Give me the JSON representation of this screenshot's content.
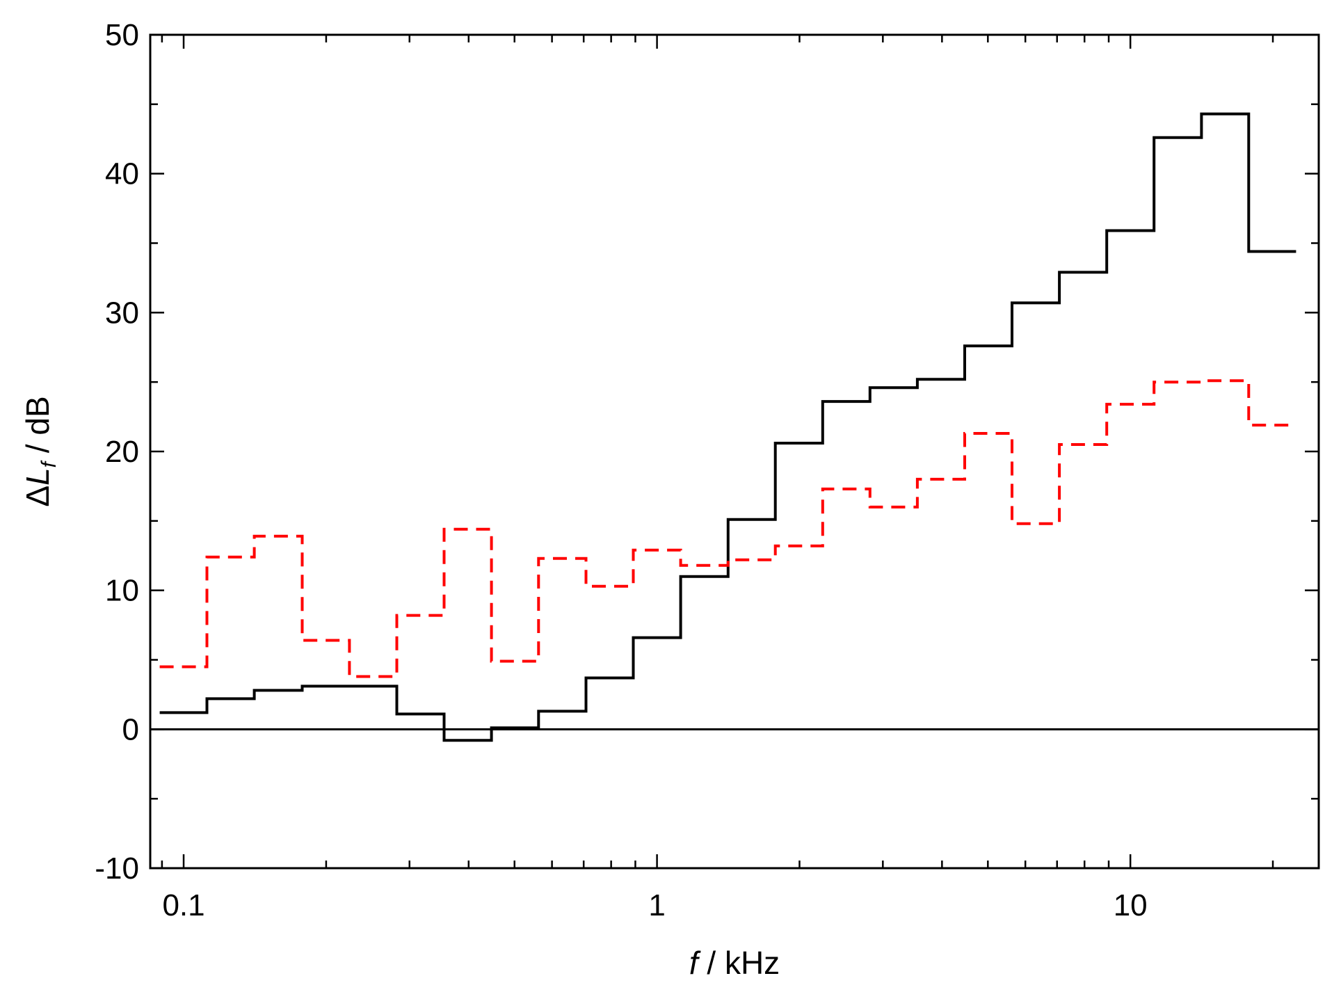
{
  "chart_data": {
    "type": "line",
    "step": true,
    "xscale": "log",
    "xlim": [
      0.085,
      25
    ],
    "ylim": [
      -10,
      50
    ],
    "xlabel": {
      "italic": "f",
      "rest": " / kHz"
    },
    "ylabel": {
      "delta": "Δ",
      "italic": "L",
      "sub": "f",
      "rest": " / dB"
    },
    "x_tick_labels": [
      {
        "value": 0.1,
        "label": "0.1"
      },
      {
        "value": 1,
        "label": "1"
      },
      {
        "value": 10,
        "label": "10"
      }
    ],
    "y_tick_labels": [
      {
        "value": -10,
        "label": "-10"
      },
      {
        "value": 0,
        "label": "0"
      },
      {
        "value": 10,
        "label": "10"
      },
      {
        "value": 20,
        "label": "20"
      },
      {
        "value": 30,
        "label": "30"
      },
      {
        "value": 40,
        "label": "40"
      },
      {
        "value": 50,
        "label": "50"
      }
    ],
    "band_edges": [
      0.089,
      0.112,
      0.141,
      0.178,
      0.224,
      0.282,
      0.355,
      0.447,
      0.562,
      0.708,
      0.891,
      1.122,
      1.413,
      1.778,
      2.239,
      2.818,
      3.548,
      4.467,
      5.623,
      7.079,
      8.913,
      11.22,
      14.13,
      17.78,
      22.39
    ],
    "series": [
      {
        "color": "#000000",
        "style": "solid",
        "values": [
          1.2,
          2.2,
          2.8,
          3.1,
          3.1,
          1.1,
          -0.8,
          0.1,
          1.3,
          3.7,
          6.6,
          11.0,
          15.1,
          20.6,
          23.6,
          24.6,
          25.2,
          27.6,
          30.7,
          32.9,
          35.9,
          42.6,
          44.3,
          34.4
        ]
      },
      {
        "color": "#ff0000",
        "style": "dashed",
        "values": [
          4.5,
          12.4,
          13.9,
          6.4,
          3.8,
          8.2,
          14.4,
          4.9,
          12.3,
          10.3,
          12.9,
          11.8,
          12.2,
          13.2,
          17.3,
          16.0,
          18.0,
          21.3,
          14.8,
          20.5,
          23.4,
          25.0,
          25.1,
          21.9
        ]
      }
    ],
    "grid": false,
    "zero_line": true
  }
}
